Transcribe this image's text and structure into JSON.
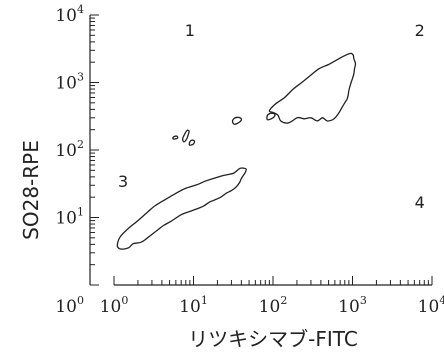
{
  "chart_data": {
    "type": "contour",
    "xlabel": "リツキシマブ-FITC",
    "ylabel": "SO28-RPE",
    "x_scale": "log",
    "y_scale": "log",
    "xlim": [
      1,
      10000
    ],
    "ylim": [
      1,
      10000
    ],
    "x_ticks": [
      {
        "value": 1,
        "base": "10",
        "exp": "0"
      },
      {
        "value": 10,
        "base": "10",
        "exp": "1"
      },
      {
        "value": 100,
        "base": "10",
        "exp": "2"
      },
      {
        "value": 1000,
        "base": "10",
        "exp": "3"
      },
      {
        "value": 10000,
        "base": "10",
        "exp": "4"
      }
    ],
    "y_ticks": [
      {
        "value": 1,
        "base": "10",
        "exp": "0"
      },
      {
        "value": 10,
        "base": "10",
        "exp": "1"
      },
      {
        "value": 100,
        "base": "10",
        "exp": "2"
      },
      {
        "value": 1000,
        "base": "10",
        "exp": "3"
      },
      {
        "value": 10000,
        "base": "10",
        "exp": "4"
      }
    ],
    "quadrants": [
      {
        "label": "1",
        "x": 9,
        "y": 6000
      },
      {
        "label": "2",
        "x": 7000,
        "y": 6000
      },
      {
        "label": "3",
        "x": 1.3,
        "y": 35
      },
      {
        "label": "4",
        "x": 7000,
        "y": 17
      }
    ],
    "contours": [
      {
        "points": [
          [
            1.1,
            3.9
          ],
          [
            1.2,
            5.2
          ],
          [
            1.5,
            6.8
          ],
          [
            2.0,
            9.0
          ],
          [
            2.6,
            11.8
          ],
          [
            3.3,
            15.0
          ],
          [
            4.6,
            19.0
          ],
          [
            5.9,
            22.5
          ],
          [
            7.8,
            26.8
          ],
          [
            11,
            30.5
          ],
          [
            14,
            34.5
          ],
          [
            20,
            39.5
          ],
          [
            25,
            42.5
          ],
          [
            32,
            45.5
          ],
          [
            38,
            53
          ],
          [
            42,
            54
          ],
          [
            46,
            52
          ],
          [
            44,
            45
          ],
          [
            40,
            38
          ],
          [
            38,
            33
          ],
          [
            34,
            28
          ],
          [
            30,
            25
          ],
          [
            26,
            23
          ],
          [
            22,
            20
          ],
          [
            18,
            18
          ],
          [
            16,
            17
          ],
          [
            13,
            14.5
          ],
          [
            9.7,
            12.7
          ],
          [
            7.1,
            11.1
          ],
          [
            5.3,
            8.9
          ],
          [
            4.2,
            7.6
          ],
          [
            3.4,
            6.3
          ],
          [
            2.7,
            5.1
          ],
          [
            2.2,
            4.3
          ],
          [
            1.75,
            4.1
          ],
          [
            1.55,
            3.6
          ],
          [
            1.3,
            3.4
          ],
          [
            1.15,
            3.5
          ],
          [
            1.1,
            3.9
          ]
        ]
      },
      {
        "points": [
          [
            90,
            380
          ],
          [
            105,
            470
          ],
          [
            140,
            600
          ],
          [
            180,
            800
          ],
          [
            230,
            1000
          ],
          [
            290,
            1250
          ],
          [
            380,
            1600
          ],
          [
            500,
            1850
          ],
          [
            650,
            2200
          ],
          [
            800,
            2500
          ],
          [
            950,
            2700
          ],
          [
            1020,
            2550
          ],
          [
            1040,
            2250
          ],
          [
            1090,
            1900
          ],
          [
            1060,
            1600
          ],
          [
            1040,
            1350
          ],
          [
            1000,
            1150
          ],
          [
            960,
            1000
          ],
          [
            930,
            880
          ],
          [
            900,
            760
          ],
          [
            880,
            640
          ],
          [
            850,
            560
          ],
          [
            800,
            500
          ],
          [
            740,
            430
          ],
          [
            680,
            360
          ],
          [
            620,
            310
          ],
          [
            560,
            280
          ],
          [
            480,
            270
          ],
          [
            420,
            300
          ],
          [
            360,
            270
          ],
          [
            300,
            300
          ],
          [
            250,
            290
          ],
          [
            220,
            300
          ],
          [
            200,
            300
          ],
          [
            175,
            270
          ],
          [
            150,
            250
          ],
          [
            125,
            270
          ],
          [
            115,
            330
          ],
          [
            100,
            360
          ],
          [
            90,
            380
          ]
        ]
      },
      {
        "points": [
          [
            86,
            280
          ],
          [
            100,
            300
          ],
          [
            106,
            330
          ],
          [
            100,
            350
          ],
          [
            88,
            340
          ],
          [
            84,
            310
          ],
          [
            86,
            280
          ]
        ]
      },
      {
        "points": [
          [
            33,
            240
          ],
          [
            38,
            260
          ],
          [
            40,
            290
          ],
          [
            36,
            305
          ],
          [
            32,
            290
          ],
          [
            31,
            260
          ],
          [
            33,
            240
          ]
        ]
      },
      {
        "points": [
          [
            7.6,
            132
          ],
          [
            8.2,
            145
          ],
          [
            8.6,
            170
          ],
          [
            8.8,
            190
          ],
          [
            8.3,
            195
          ],
          [
            7.7,
            170
          ],
          [
            7.3,
            145
          ],
          [
            7.6,
            132
          ]
        ]
      },
      {
        "points": [
          [
            8.9,
            118
          ],
          [
            9.9,
            122
          ],
          [
            10.3,
            135
          ],
          [
            9.6,
            140
          ],
          [
            9.0,
            132
          ],
          [
            8.9,
            118
          ]
        ]
      },
      {
        "points": [
          [
            5.7,
            145
          ],
          [
            6.3,
            150
          ],
          [
            6.2,
            160
          ],
          [
            5.7,
            158
          ],
          [
            5.5,
            150
          ],
          [
            5.7,
            145
          ]
        ]
      }
    ]
  }
}
